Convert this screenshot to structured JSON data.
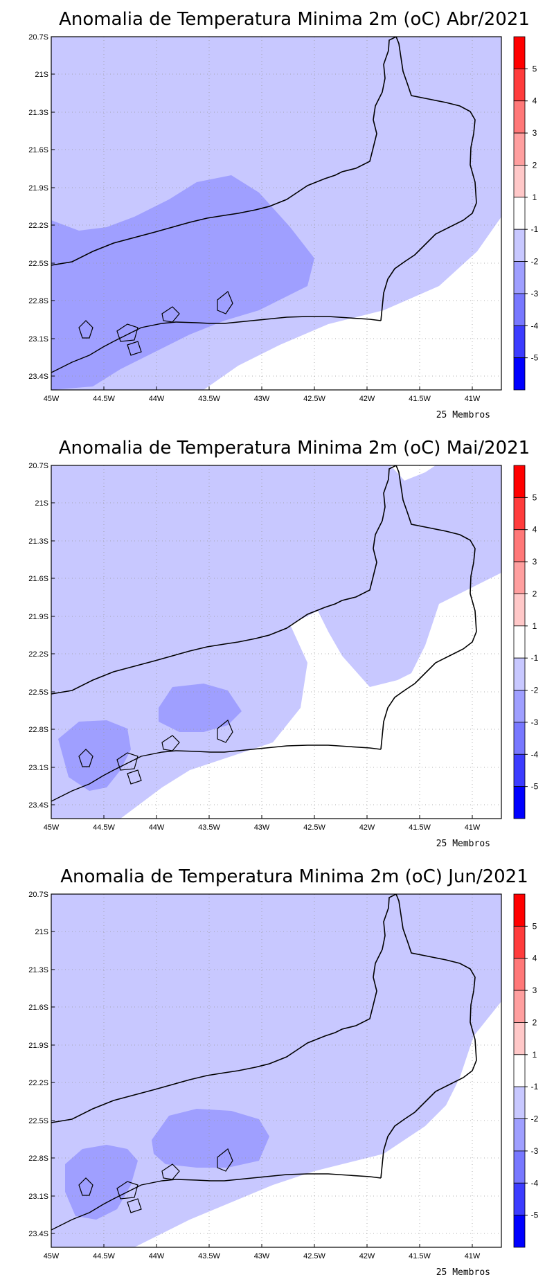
{
  "panels": [
    {
      "title": "Anomalia de Temperatura Minima 2m (oC) Abr/2021",
      "members_label": "25 Membros"
    },
    {
      "title": "Anomalia de Temperatura Minima 2m (oC) Mai/2021",
      "members_label": "25 Membros"
    },
    {
      "title": "Anomalia de Temperatura Minima 2m (oC) Jun/2021",
      "members_label": "25 Membros"
    }
  ],
  "lat_labels": [
    "20.7S",
    "21S",
    "21.3S",
    "21.6S",
    "21.9S",
    "22.2S",
    "22.5S",
    "22.8S",
    "23.1S",
    "23.4S"
  ],
  "lon_labels": [
    "45W",
    "44.5W",
    "44W",
    "43.5W",
    "43W",
    "42.5W",
    "42W",
    "41.5W",
    "41W"
  ],
  "colorbar": {
    "labels": [
      "5",
      "4",
      "3",
      "2",
      "1",
      "-1",
      "-2",
      "-3",
      "-4",
      "-5"
    ],
    "colors": [
      "#ff0000",
      "#ff3c3c",
      "#ff7878",
      "#ff9f9f",
      "#ffc8c8",
      "#ffffff",
      "#c8c8ff",
      "#9f9fff",
      "#7878ff",
      "#3c3cff",
      "#0000ff"
    ]
  },
  "fill_colors": {
    "lev_m1": "#c8c8ff",
    "lev_m2": "#9f9fff",
    "zero": "#ffffff"
  }
}
